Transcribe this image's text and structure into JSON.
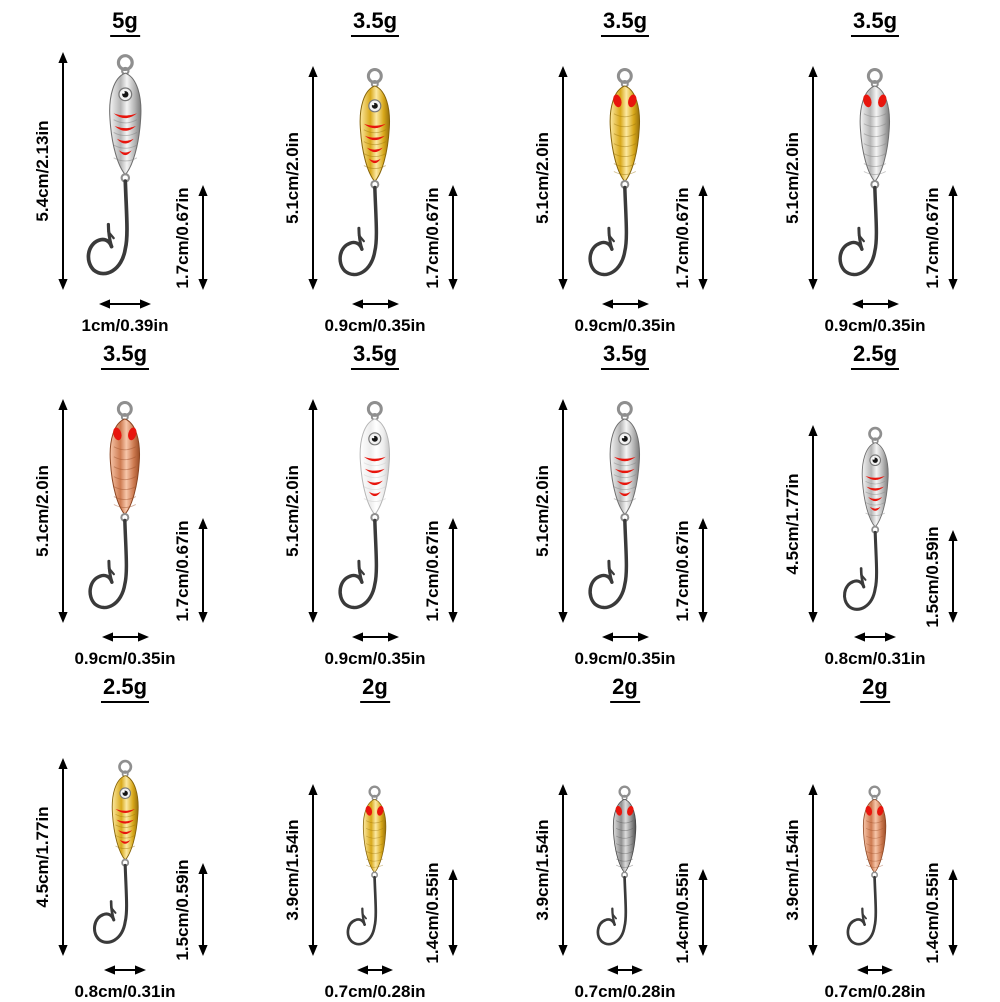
{
  "palette": {
    "silver": {
      "light": "#f4f4f4",
      "mid": "#b5b5b5",
      "dark": "#7c7c7c",
      "stroke": "#6e6e6e"
    },
    "gold": {
      "light": "#fce9a2",
      "mid": "#d8a81a",
      "dark": "#97700b",
      "stroke": "#85630a"
    },
    "copper": {
      "light": "#f7c6aa",
      "mid": "#cd7a50",
      "dark": "#9c4e28",
      "stroke": "#8a4522"
    },
    "white": {
      "light": "#ffffff",
      "mid": "#ededed",
      "dark": "#c8c8c8",
      "stroke": "#b5b5b5"
    },
    "gunmetal": {
      "light": "#dcdcdc",
      "mid": "#909090",
      "dark": "#505050",
      "stroke": "#454545"
    }
  },
  "accents": {
    "marking_red": "#e8150d",
    "hook": "#3a3a3a",
    "ring": "#8f8f8f",
    "arrow": "#000000",
    "text": "#000000"
  },
  "lures": [
    {
      "weight": "5g",
      "length": "5.4cm/2.13in",
      "hook": "1.7cm/0.67in",
      "width": "1cm/0.39in",
      "color": "silver",
      "pattern": "bars"
    },
    {
      "weight": "3.5g",
      "length": "5.1cm/2.0in",
      "hook": "1.7cm/0.67in",
      "width": "0.9cm/0.35in",
      "color": "gold",
      "pattern": "bars"
    },
    {
      "weight": "3.5g",
      "length": "5.1cm/2.0in",
      "hook": "1.7cm/0.67in",
      "width": "0.9cm/0.35in",
      "color": "gold",
      "pattern": "spots"
    },
    {
      "weight": "3.5g",
      "length": "5.1cm/2.0in",
      "hook": "1.7cm/0.67in",
      "width": "0.9cm/0.35in",
      "color": "silver",
      "pattern": "spots"
    },
    {
      "weight": "3.5g",
      "length": "5.1cm/2.0in",
      "hook": "1.7cm/0.67in",
      "width": "0.9cm/0.35in",
      "color": "copper",
      "pattern": "spots"
    },
    {
      "weight": "3.5g",
      "length": "5.1cm/2.0in",
      "hook": "1.7cm/0.67in",
      "width": "0.9cm/0.35in",
      "color": "white",
      "pattern": "bars"
    },
    {
      "weight": "3.5g",
      "length": "5.1cm/2.0in",
      "hook": "1.7cm/0.67in",
      "width": "0.9cm/0.35in",
      "color": "silver",
      "pattern": "bars"
    },
    {
      "weight": "2.5g",
      "length": "4.5cm/1.77in",
      "hook": "1.5cm/0.59in",
      "width": "0.8cm/0.31in",
      "color": "silver",
      "pattern": "bars"
    },
    {
      "weight": "2.5g",
      "length": "4.5cm/1.77in",
      "hook": "1.5cm/0.59in",
      "width": "0.8cm/0.31in",
      "color": "gold",
      "pattern": "bars"
    },
    {
      "weight": "2g",
      "length": "3.9cm/1.54in",
      "hook": "1.4cm/0.55in",
      "width": "0.7cm/0.28in",
      "color": "gold",
      "pattern": "spots"
    },
    {
      "weight": "2g",
      "length": "3.9cm/1.54in",
      "hook": "1.4cm/0.55in",
      "width": "0.7cm/0.28in",
      "color": "gunmetal",
      "pattern": "spots"
    },
    {
      "weight": "2g",
      "length": "3.9cm/1.54in",
      "hook": "1.4cm/0.55in",
      "width": "0.7cm/0.28in",
      "color": "copper",
      "pattern": "spots"
    }
  ]
}
